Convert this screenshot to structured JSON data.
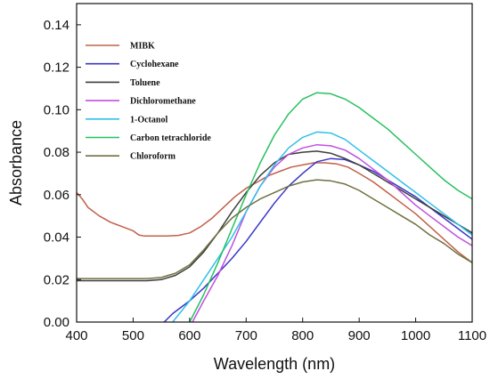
{
  "chart_data": {
    "type": "line",
    "title": "",
    "xlabel": "Wavelength (nm)",
    "ylabel": "Absorbance",
    "xlim": [
      400,
      1100
    ],
    "ylim": [
      0.0,
      0.15
    ],
    "x_ticks": [
      "400",
      "500",
      "600",
      "700",
      "800",
      "900",
      "1000",
      "1100"
    ],
    "y_ticks": [
      "0.00",
      "0.02",
      "0.04",
      "0.06",
      "0.08",
      "0.10",
      "0.12",
      "0.14"
    ],
    "grid": false,
    "legend_position": "top-left",
    "series": [
      {
        "name": "MIBK",
        "color": "#c0604a",
        "points": [
          [
            400,
            0.061
          ],
          [
            410,
            0.058
          ],
          [
            420,
            0.054
          ],
          [
            440,
            0.05
          ],
          [
            460,
            0.047
          ],
          [
            480,
            0.045
          ],
          [
            500,
            0.043
          ],
          [
            510,
            0.041
          ],
          [
            520,
            0.0405
          ],
          [
            540,
            0.0405
          ],
          [
            560,
            0.0405
          ],
          [
            580,
            0.0408
          ],
          [
            600,
            0.042
          ],
          [
            620,
            0.045
          ],
          [
            640,
            0.049
          ],
          [
            660,
            0.054
          ],
          [
            680,
            0.059
          ],
          [
            700,
            0.063
          ],
          [
            720,
            0.066
          ],
          [
            740,
            0.069
          ],
          [
            760,
            0.071
          ],
          [
            780,
            0.073
          ],
          [
            800,
            0.074
          ],
          [
            820,
            0.075
          ],
          [
            840,
            0.075
          ],
          [
            860,
            0.0745
          ],
          [
            880,
            0.073
          ],
          [
            900,
            0.07
          ],
          [
            925,
            0.066
          ],
          [
            950,
            0.061
          ],
          [
            975,
            0.056
          ],
          [
            1000,
            0.051
          ],
          [
            1025,
            0.045
          ],
          [
            1050,
            0.039
          ],
          [
            1075,
            0.033
          ],
          [
            1100,
            0.028
          ]
        ]
      },
      {
        "name": "Cyclohexane",
        "color": "#3a36c8",
        "points": [
          [
            555,
            0.0
          ],
          [
            570,
            0.004
          ],
          [
            600,
            0.01
          ],
          [
            625,
            0.016
          ],
          [
            650,
            0.023
          ],
          [
            675,
            0.03
          ],
          [
            700,
            0.038
          ],
          [
            725,
            0.047
          ],
          [
            750,
            0.056
          ],
          [
            775,
            0.064
          ],
          [
            800,
            0.07
          ],
          [
            825,
            0.0755
          ],
          [
            850,
            0.077
          ],
          [
            875,
            0.0765
          ],
          [
            900,
            0.074
          ],
          [
            925,
            0.071
          ],
          [
            950,
            0.067
          ],
          [
            975,
            0.063
          ],
          [
            1000,
            0.059
          ],
          [
            1025,
            0.054
          ],
          [
            1050,
            0.049
          ],
          [
            1075,
            0.044
          ],
          [
            1100,
            0.039
          ]
        ]
      },
      {
        "name": "Toluene",
        "color": "#3d3d3d",
        "points": [
          [
            400,
            0.0195
          ],
          [
            450,
            0.0195
          ],
          [
            500,
            0.0195
          ],
          [
            525,
            0.0195
          ],
          [
            550,
            0.02
          ],
          [
            575,
            0.022
          ],
          [
            600,
            0.026
          ],
          [
            625,
            0.033
          ],
          [
            650,
            0.042
          ],
          [
            675,
            0.052
          ],
          [
            700,
            0.061
          ],
          [
            725,
            0.069
          ],
          [
            750,
            0.075
          ],
          [
            775,
            0.079
          ],
          [
            800,
            0.08
          ],
          [
            825,
            0.0805
          ],
          [
            850,
            0.0795
          ],
          [
            875,
            0.077
          ],
          [
            900,
            0.074
          ],
          [
            925,
            0.07
          ],
          [
            950,
            0.066
          ],
          [
            975,
            0.062
          ],
          [
            1000,
            0.058
          ],
          [
            1025,
            0.054
          ],
          [
            1050,
            0.05
          ],
          [
            1075,
            0.046
          ],
          [
            1100,
            0.042
          ]
        ]
      },
      {
        "name": "Dichloromethane",
        "color": "#c050e0",
        "points": [
          [
            605,
            0.0
          ],
          [
            625,
            0.01
          ],
          [
            650,
            0.022
          ],
          [
            675,
            0.036
          ],
          [
            700,
            0.052
          ],
          [
            725,
            0.064
          ],
          [
            750,
            0.073
          ],
          [
            775,
            0.079
          ],
          [
            800,
            0.082
          ],
          [
            825,
            0.0835
          ],
          [
            850,
            0.083
          ],
          [
            875,
            0.081
          ],
          [
            900,
            0.077
          ],
          [
            925,
            0.072
          ],
          [
            950,
            0.067
          ],
          [
            975,
            0.061
          ],
          [
            1000,
            0.055
          ],
          [
            1025,
            0.05
          ],
          [
            1050,
            0.045
          ],
          [
            1075,
            0.04
          ],
          [
            1100,
            0.036
          ]
        ]
      },
      {
        "name": "1-Octanol",
        "color": "#30c0e8",
        "points": [
          [
            570,
            0.0
          ],
          [
            600,
            0.01
          ],
          [
            625,
            0.02
          ],
          [
            650,
            0.03
          ],
          [
            675,
            0.04
          ],
          [
            700,
            0.052
          ],
          [
            725,
            0.064
          ],
          [
            750,
            0.074
          ],
          [
            775,
            0.082
          ],
          [
            800,
            0.087
          ],
          [
            825,
            0.0895
          ],
          [
            850,
            0.089
          ],
          [
            875,
            0.086
          ],
          [
            900,
            0.081
          ],
          [
            925,
            0.076
          ],
          [
            950,
            0.071
          ],
          [
            975,
            0.066
          ],
          [
            1000,
            0.061
          ],
          [
            1025,
            0.056
          ],
          [
            1050,
            0.051
          ],
          [
            1075,
            0.046
          ],
          [
            1100,
            0.041
          ]
        ]
      },
      {
        "name": "Carbon tetrachloride",
        "color": "#28c060",
        "points": [
          [
            600,
            0.0
          ],
          [
            625,
            0.013
          ],
          [
            650,
            0.028
          ],
          [
            675,
            0.044
          ],
          [
            700,
            0.06
          ],
          [
            725,
            0.075
          ],
          [
            750,
            0.088
          ],
          [
            775,
            0.098
          ],
          [
            800,
            0.105
          ],
          [
            825,
            0.108
          ],
          [
            850,
            0.1075
          ],
          [
            875,
            0.105
          ],
          [
            900,
            0.101
          ],
          [
            925,
            0.096
          ],
          [
            950,
            0.091
          ],
          [
            975,
            0.085
          ],
          [
            1000,
            0.079
          ],
          [
            1025,
            0.073
          ],
          [
            1050,
            0.067
          ],
          [
            1075,
            0.062
          ],
          [
            1100,
            0.058
          ]
        ]
      },
      {
        "name": "Chloroform",
        "color": "#707040",
        "points": [
          [
            400,
            0.0205
          ],
          [
            450,
            0.0205
          ],
          [
            500,
            0.0205
          ],
          [
            525,
            0.0205
          ],
          [
            550,
            0.021
          ],
          [
            575,
            0.023
          ],
          [
            600,
            0.027
          ],
          [
            625,
            0.034
          ],
          [
            650,
            0.042
          ],
          [
            675,
            0.049
          ],
          [
            700,
            0.054
          ],
          [
            725,
            0.058
          ],
          [
            750,
            0.061
          ],
          [
            775,
            0.064
          ],
          [
            800,
            0.066
          ],
          [
            825,
            0.067
          ],
          [
            850,
            0.0665
          ],
          [
            875,
            0.065
          ],
          [
            900,
            0.062
          ],
          [
            925,
            0.058
          ],
          [
            950,
            0.054
          ],
          [
            975,
            0.05
          ],
          [
            1000,
            0.046
          ],
          [
            1025,
            0.041
          ],
          [
            1050,
            0.037
          ],
          [
            1075,
            0.032
          ],
          [
            1100,
            0.028
          ]
        ]
      }
    ]
  }
}
